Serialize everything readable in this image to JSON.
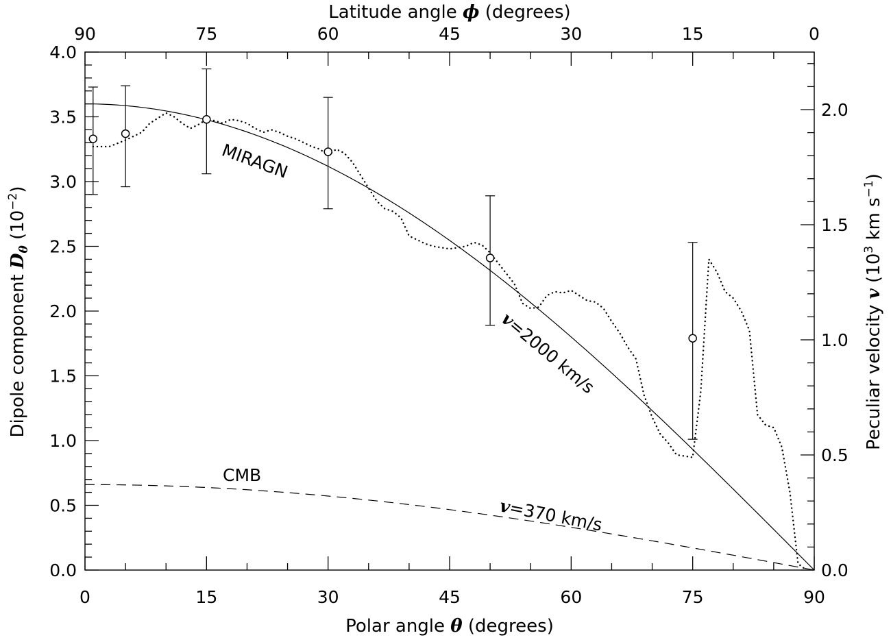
{
  "chart_data": {
    "type": "line",
    "xlabel": {
      "text": "Polar angle ",
      "symbol": "θ",
      "unit": " (degrees)"
    },
    "x2label": {
      "text": "Latitude angle ",
      "symbol": "ϕ",
      "unit": " (degrees)"
    },
    "ylabel": {
      "text": "Dipole component ",
      "symbol": "D",
      "sub": "θ",
      "unit_pre": " (10",
      "unit_sup": "−2",
      "unit_post": ")"
    },
    "y2label": {
      "text": "Peculiar velocity ",
      "symbol": "v",
      "unit_pre": " (10",
      "unit_sup": "3",
      "unit_mid": " km s",
      "unit_sup2": "−1",
      "unit_post": ")"
    },
    "xlim": [
      0,
      90
    ],
    "ylim": [
      0,
      4
    ],
    "y2lim": [
      0,
      2.25
    ],
    "x_ticks": [
      "0",
      "15",
      "30",
      "45",
      "60",
      "75",
      "90"
    ],
    "x2_ticks": [
      "90",
      "75",
      "60",
      "45",
      "30",
      "15",
      "0"
    ],
    "y_ticks": [
      "0.0",
      "0.5",
      "1.0",
      "1.5",
      "2.0",
      "2.5",
      "3.0",
      "3.5",
      "4.0"
    ],
    "y2_ticks": [
      "0.0",
      "0.5",
      "1.0",
      "1.5",
      "2.0"
    ],
    "annotations": {
      "miragn": "MIRAGN",
      "v2000": "=2000 km/s",
      "cmb": "CMB",
      "v370": "=370 km/s",
      "v_symbol": "v"
    },
    "series": [
      {
        "style": "solid",
        "amplitude": 3.6,
        "x": [
          0,
          3,
          6,
          9,
          12,
          15,
          18,
          21,
          24,
          27,
          30,
          33,
          36,
          39,
          42,
          45,
          48,
          51,
          54,
          57,
          60,
          63,
          66,
          69,
          72,
          75,
          78,
          81,
          84,
          87,
          90
        ],
        "y": [
          3.6,
          3.595,
          3.58,
          3.556,
          3.521,
          3.477,
          3.424,
          3.361,
          3.289,
          3.208,
          3.118,
          3.019,
          2.912,
          2.798,
          2.675,
          2.546,
          2.409,
          2.266,
          2.116,
          1.961,
          1.8,
          1.634,
          1.464,
          1.29,
          1.112,
          0.932,
          0.748,
          0.563,
          0.376,
          0.188,
          0.0
        ]
      },
      {
        "style": "dashed",
        "amplitude": 0.66,
        "x": [
          0,
          10,
          20,
          30,
          40,
          50,
          60,
          70,
          80,
          90
        ],
        "y": [
          0.66,
          0.65,
          0.62,
          0.572,
          0.506,
          0.424,
          0.33,
          0.226,
          0.115,
          0.0
        ]
      },
      {
        "style": "dotted",
        "x": [
          1,
          3,
          5,
          7,
          8,
          10,
          11,
          12,
          13,
          14,
          15,
          16,
          17,
          18,
          19,
          20,
          21,
          22,
          23,
          24,
          25,
          26,
          27,
          28,
          29,
          30,
          31,
          32,
          33,
          34,
          35,
          36,
          37,
          38,
          39,
          40,
          41,
          42,
          43,
          44,
          45,
          46,
          47,
          48,
          49,
          50,
          51,
          52,
          53,
          54,
          55,
          56,
          57,
          58,
          59,
          60,
          61,
          62,
          63,
          64,
          65,
          66,
          67,
          68,
          69,
          70,
          71,
          72,
          73,
          74,
          75,
          76,
          77,
          78,
          79,
          80,
          81,
          82,
          83,
          84,
          85,
          86,
          87,
          88,
          89
        ],
        "y": [
          3.27,
          3.27,
          3.32,
          3.38,
          3.45,
          3.53,
          3.5,
          3.45,
          3.41,
          3.44,
          3.48,
          3.47,
          3.45,
          3.48,
          3.47,
          3.45,
          3.41,
          3.38,
          3.4,
          3.38,
          3.35,
          3.33,
          3.3,
          3.27,
          3.25,
          3.2,
          3.25,
          3.22,
          3.15,
          3.05,
          2.95,
          2.85,
          2.79,
          2.77,
          2.72,
          2.58,
          2.55,
          2.52,
          2.5,
          2.49,
          2.48,
          2.49,
          2.5,
          2.53,
          2.51,
          2.45,
          2.37,
          2.29,
          2.21,
          2.06,
          2.02,
          2.03,
          2.12,
          2.15,
          2.14,
          2.16,
          2.12,
          2.08,
          2.07,
          2.02,
          1.92,
          1.83,
          1.72,
          1.63,
          1.35,
          1.18,
          1.05,
          0.98,
          0.89,
          0.88,
          0.87,
          1.38,
          2.4,
          2.3,
          2.15,
          2.1,
          2.0,
          1.85,
          1.2,
          1.12,
          1.1,
          0.95,
          0.6,
          0.05,
          0.0
        ]
      },
      {
        "style": "points",
        "x": [
          1,
          5,
          15,
          30,
          50,
          75
        ],
        "y": [
          3.33,
          3.37,
          3.48,
          3.23,
          2.41,
          1.79
        ],
        "err_low": [
          2.9,
          2.96,
          3.06,
          2.79,
          1.89,
          1.01
        ],
        "err_high": [
          3.73,
          3.74,
          3.87,
          3.65,
          2.89,
          2.53
        ]
      }
    ]
  }
}
